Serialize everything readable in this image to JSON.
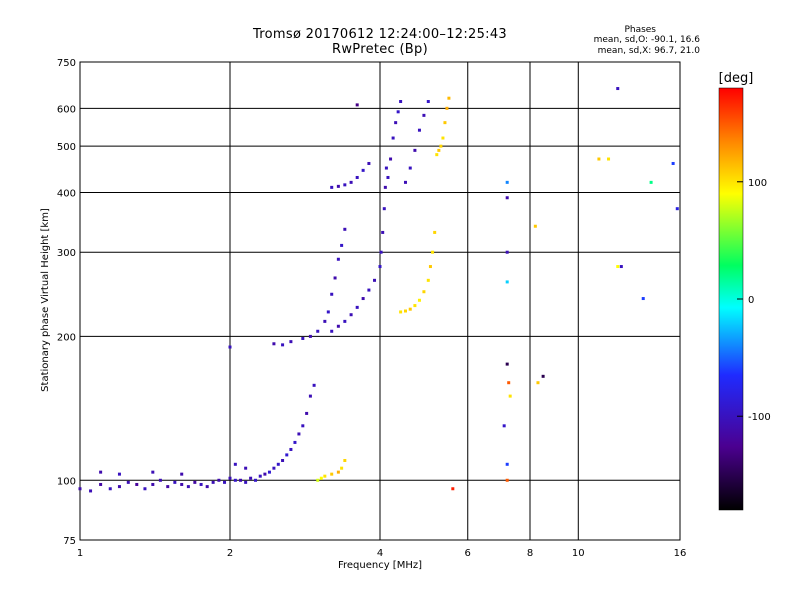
{
  "chart_data": {
    "type": "scatter",
    "title": "Tromsø 20170612 12:24:00–12:25:43",
    "subtitle": "RwPretec (Bp)",
    "xlabel": "Frequency [MHz]",
    "ylabel": "Stationary phase Virtual Height [km]",
    "x_scale": "log",
    "y_scale": "log",
    "xlim": [
      1,
      16
    ],
    "ylim": [
      75,
      750
    ],
    "x_ticks": [
      1,
      2,
      4,
      6,
      8,
      10,
      16
    ],
    "y_ticks": [
      75,
      100,
      200,
      300,
      400,
      500,
      600,
      750
    ],
    "grid": true,
    "color_label": "[deg]",
    "color_range": [
      -180,
      180
    ],
    "colorbar_ticks": [
      100,
      0,
      -100
    ],
    "colors": {
      "low": "#000000",
      "mid_low": "#1f2bff",
      "mid": "#00ff60",
      "mid_high": "#ffff00",
      "high": "#ff0000"
    },
    "phase_header": "Phases",
    "phase_line_o": "mean, sd,O: -90.1, 16.6",
    "phase_line_x": "mean, sd,X:  96.7, 21.0",
    "series": [
      {
        "points": [
          [
            1.0,
            96,
            -110
          ],
          [
            1.05,
            95,
            -105
          ],
          [
            1.1,
            98,
            -115
          ],
          [
            1.15,
            96,
            -100
          ],
          [
            1.2,
            97,
            -110
          ],
          [
            1.25,
            99,
            -105
          ],
          [
            1.3,
            98,
            -120
          ],
          [
            1.35,
            96,
            -100
          ],
          [
            1.4,
            98,
            -110
          ],
          [
            1.45,
            100,
            -105
          ],
          [
            1.5,
            97,
            -115
          ],
          [
            1.55,
            99,
            -100
          ],
          [
            1.6,
            98,
            -110
          ],
          [
            1.65,
            97,
            -105
          ],
          [
            1.7,
            99,
            -115
          ],
          [
            1.75,
            98,
            -100
          ],
          [
            1.8,
            97,
            -110
          ],
          [
            1.85,
            99,
            -105
          ],
          [
            1.9,
            100,
            -110
          ],
          [
            1.95,
            99,
            -100
          ],
          [
            2.0,
            101,
            -105
          ],
          [
            2.05,
            100,
            -95
          ],
          [
            2.1,
            100,
            -110
          ],
          [
            2.15,
            99,
            -100
          ],
          [
            2.2,
            101,
            -105
          ],
          [
            2.25,
            100,
            -95
          ],
          [
            2.3,
            102,
            -100
          ],
          [
            2.35,
            103,
            -110
          ],
          [
            2.4,
            104,
            -90
          ],
          [
            2.45,
            106,
            -100
          ],
          [
            2.5,
            108,
            -95
          ],
          [
            2.55,
            110,
            -105
          ],
          [
            2.6,
            113,
            -90
          ],
          [
            2.65,
            116,
            -100
          ],
          [
            2.7,
            120,
            -95
          ],
          [
            2.75,
            125,
            -105
          ],
          [
            2.8,
            130,
            -100
          ],
          [
            2.85,
            138,
            -110
          ],
          [
            2.9,
            150,
            -105
          ],
          [
            2.95,
            158,
            -100
          ],
          [
            1.1,
            104,
            -110
          ],
          [
            1.2,
            103,
            -100
          ],
          [
            1.4,
            104,
            -105
          ],
          [
            1.6,
            103,
            -110
          ],
          [
            2.05,
            108,
            -100
          ],
          [
            2.15,
            106,
            -105
          ]
        ]
      },
      {
        "points": [
          [
            2.0,
            190,
            -100
          ],
          [
            2.45,
            193,
            -110
          ],
          [
            2.55,
            192,
            -100
          ],
          [
            2.65,
            195,
            -105
          ],
          [
            2.8,
            198,
            -100
          ],
          [
            2.9,
            200,
            -110
          ],
          [
            3.0,
            205,
            -100
          ],
          [
            3.1,
            215,
            -105
          ],
          [
            3.15,
            225,
            -95
          ],
          [
            3.2,
            245,
            -100
          ],
          [
            3.25,
            265,
            -110
          ],
          [
            3.3,
            290,
            -100
          ],
          [
            3.35,
            310,
            -95
          ],
          [
            3.4,
            335,
            -105
          ],
          [
            3.2,
            205,
            -100
          ],
          [
            3.3,
            210,
            -110
          ],
          [
            3.4,
            215,
            -100
          ],
          [
            3.5,
            222,
            -105
          ],
          [
            3.6,
            230,
            -100
          ],
          [
            3.7,
            240,
            -110
          ],
          [
            3.8,
            250,
            -100
          ],
          [
            3.9,
            262,
            -105
          ],
          [
            4.0,
            280,
            -95
          ],
          [
            4.02,
            300,
            -100
          ],
          [
            4.05,
            330,
            -105
          ],
          [
            4.08,
            370,
            -100
          ],
          [
            4.1,
            410,
            -110
          ],
          [
            4.12,
            450,
            -100
          ]
        ]
      },
      {
        "points": [
          [
            3.2,
            410,
            -100
          ],
          [
            3.3,
            412,
            -110
          ],
          [
            3.4,
            415,
            -100
          ],
          [
            3.5,
            420,
            -105
          ],
          [
            3.6,
            430,
            -100
          ],
          [
            3.7,
            445,
            -95
          ],
          [
            3.8,
            460,
            -105
          ],
          [
            4.15,
            430,
            -100
          ],
          [
            4.2,
            470,
            -110
          ],
          [
            4.25,
            520,
            -100
          ],
          [
            4.3,
            560,
            -105
          ],
          [
            4.35,
            590,
            -95
          ],
          [
            4.4,
            620,
            -100
          ],
          [
            4.5,
            420,
            -105
          ],
          [
            4.6,
            450,
            -100
          ],
          [
            4.7,
            490,
            -110
          ],
          [
            4.8,
            540,
            -100
          ],
          [
            4.9,
            580,
            -105
          ],
          [
            5.0,
            620,
            -95
          ],
          [
            3.6,
            610,
            -130
          ]
        ]
      },
      {
        "points": [
          [
            4.4,
            225,
            100
          ],
          [
            4.5,
            226,
            105
          ],
          [
            4.6,
            228,
            110
          ],
          [
            4.7,
            232,
            100
          ],
          [
            4.8,
            238,
            95
          ],
          [
            4.9,
            248,
            105
          ],
          [
            5.0,
            262,
            100
          ],
          [
            5.05,
            280,
            110
          ],
          [
            5.1,
            300,
            100
          ],
          [
            5.15,
            330,
            105
          ],
          [
            5.2,
            480,
            100
          ],
          [
            5.25,
            490,
            110
          ],
          [
            5.3,
            500,
            105
          ],
          [
            5.35,
            520,
            100
          ],
          [
            5.4,
            560,
            110
          ],
          [
            5.45,
            600,
            120
          ],
          [
            5.5,
            630,
            115
          ],
          [
            3.0,
            100,
            80
          ],
          [
            3.05,
            101,
            90
          ],
          [
            3.1,
            102,
            100
          ],
          [
            3.2,
            103,
            110
          ],
          [
            3.3,
            104,
            120
          ],
          [
            3.35,
            106,
            100
          ],
          [
            3.4,
            110,
            105
          ],
          [
            5.6,
            96,
            170
          ]
        ]
      },
      {
        "points": [
          [
            7.2,
            390,
            -110
          ],
          [
            7.2,
            300,
            -105
          ],
          [
            7.2,
            420,
            -40
          ],
          [
            7.2,
            260,
            -20
          ],
          [
            7.1,
            130,
            -95
          ],
          [
            7.2,
            108,
            -60
          ],
          [
            7.2,
            100,
            150
          ],
          [
            7.25,
            160,
            150
          ],
          [
            7.3,
            150,
            100
          ],
          [
            7.2,
            175,
            -150
          ],
          [
            8.2,
            340,
            110
          ],
          [
            8.3,
            160,
            110
          ],
          [
            8.5,
            165,
            -150
          ],
          [
            11.0,
            470,
            110
          ],
          [
            11.5,
            470,
            100
          ],
          [
            12.0,
            280,
            90
          ],
          [
            12.2,
            280,
            -100
          ],
          [
            13.5,
            240,
            -60
          ],
          [
            14.0,
            420,
            20
          ],
          [
            15.5,
            460,
            -60
          ],
          [
            15.8,
            370,
            -80
          ],
          [
            12.0,
            660,
            -100
          ]
        ]
      }
    ]
  }
}
